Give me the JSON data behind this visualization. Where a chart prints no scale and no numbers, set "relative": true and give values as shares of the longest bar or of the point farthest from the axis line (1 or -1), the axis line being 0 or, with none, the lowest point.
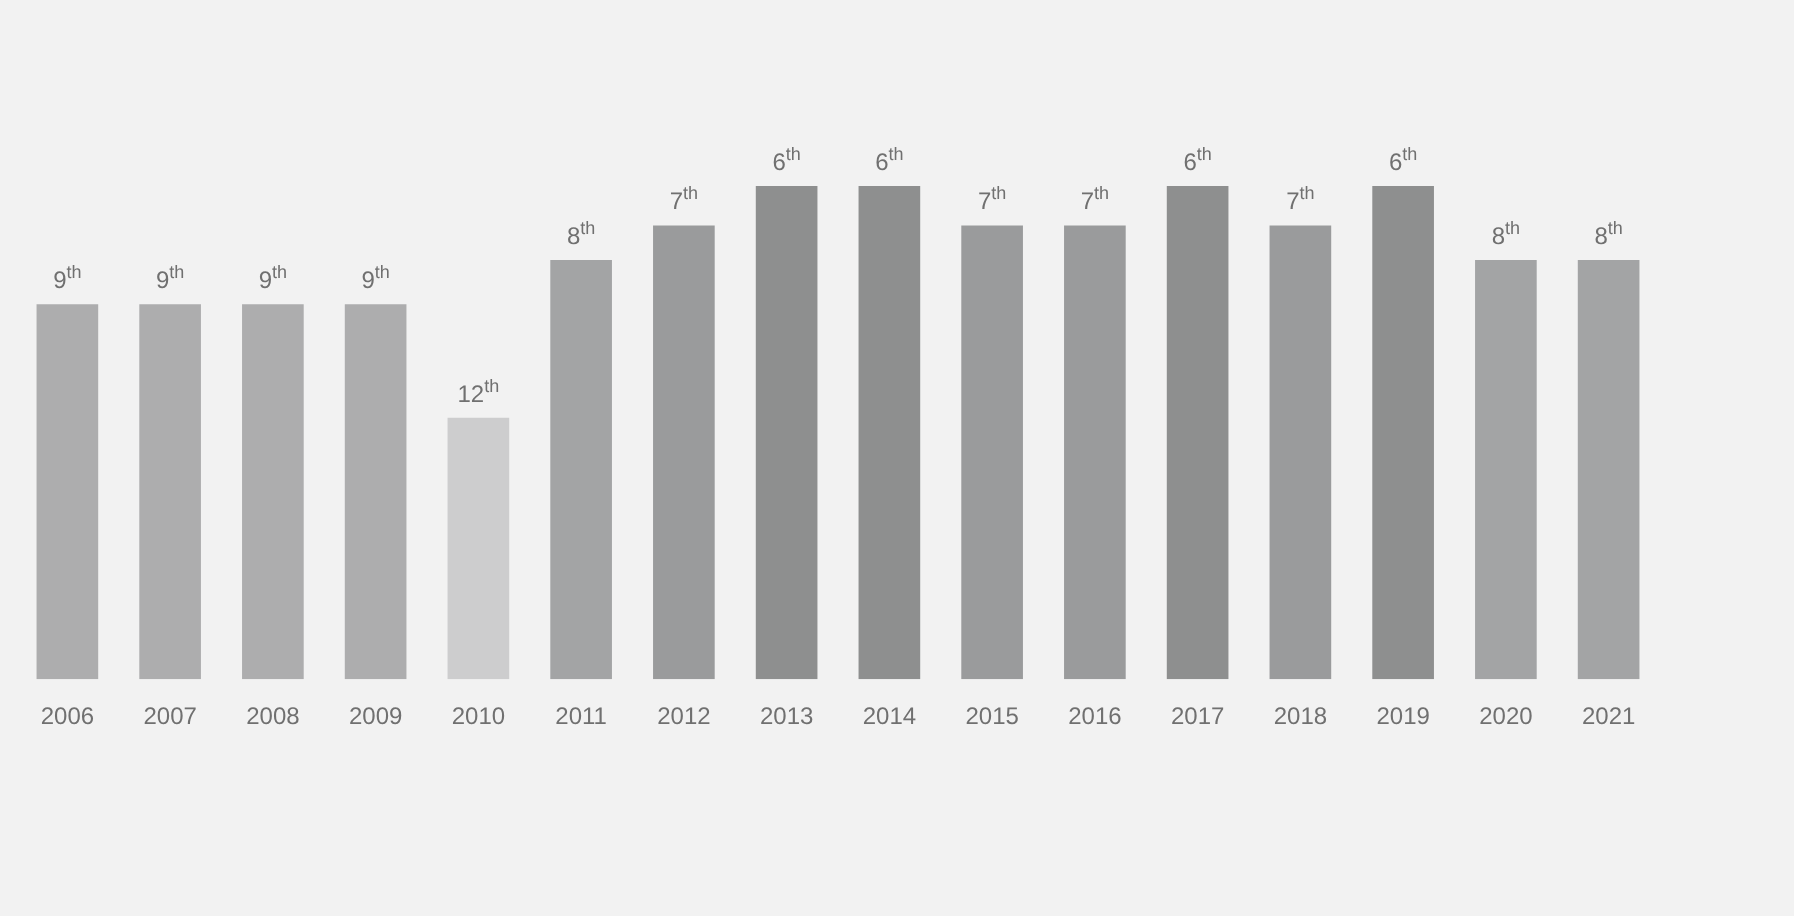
{
  "chart_data": {
    "type": "bar",
    "relative": true,
    "categories": [
      "2006",
      "2007",
      "2008",
      "2009",
      "2010",
      "2011",
      "2012",
      "2013",
      "2014",
      "2015",
      "2016",
      "2017",
      "2018",
      "2019",
      "2020",
      "2021"
    ],
    "values": [
      0.76,
      0.76,
      0.76,
      0.76,
      0.53,
      0.85,
      0.92,
      1,
      1,
      0.92,
      0.92,
      1,
      0.92,
      1,
      0.85,
      0.85
    ],
    "colors": [
      "#adadae",
      "#adadae",
      "#adadae",
      "#adadae",
      "#cdcdce",
      "#a3a4a5",
      "#9a9b9c",
      "#8e8f8f",
      "#8e8f8f",
      "#9a9b9c",
      "#9a9b9c",
      "#8e8f8f",
      "#9a9b9c",
      "#8e8f8f",
      "#a3a4a5",
      "#a3a4a5"
    ],
    "annotations": [
      {
        "text": "9$^{th}$",
        "x": "2006",
        "y": 0.76
      },
      {
        "text": "9$^{th}$",
        "x": "2007",
        "y": 0.76
      },
      {
        "text": "9$^{th}$",
        "x": "2008",
        "y": 0.76
      },
      {
        "text": "9$^{th}$",
        "x": "2009",
        "y": 0.76
      },
      {
        "text": "12$^{th}$",
        "x": "2010",
        "y": 0.53
      },
      {
        "text": "8$^{th}$",
        "x": "2011",
        "y": 0.85
      },
      {
        "text": "7$^{th}$",
        "x": "2012",
        "y": 0.92
      },
      {
        "text": "6$^{th}$",
        "x": "2013",
        "y": 1
      },
      {
        "text": "6$^{th}$",
        "x": "2014",
        "y": 1
      },
      {
        "text": "7$^{th}$",
        "x": "2015",
        "y": 0.92
      },
      {
        "text": "7$^{th}$",
        "x": "2016",
        "y": 0.92
      },
      {
        "text": "6$^{th}$",
        "x": "2017",
        "y": 1
      },
      {
        "text": "7$^{th}$",
        "x": "2018",
        "y": 0.92
      },
      {
        "text": "6$^{th}$",
        "x": "2019",
        "y": 1
      },
      {
        "text": "8$^{th}$",
        "x": "2020",
        "y": 0.85
      },
      {
        "text": "8$^{th}$",
        "x": "2021",
        "y": 0.85
      }
    ]
  }
}
